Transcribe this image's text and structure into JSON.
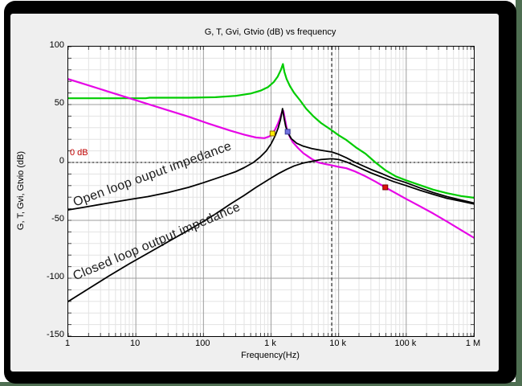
{
  "window": {
    "frame_color": "#000000",
    "desktop_color": "#4e6e51",
    "panel_color": "#efefef",
    "plot_bg": "#ffffff"
  },
  "chart_data": {
    "type": "line",
    "title": "G, T, Gvi, Gtvio (dB) vs frequency",
    "xlabel": "Frequency(Hz)",
    "ylabel": "G, T, Gvi, Gtvio (dB)",
    "x_scale": "log",
    "xlim": [
      1,
      1000000
    ],
    "ylim": [
      -150,
      100
    ],
    "grid": true,
    "grid_minor_color": "#e3e3e3",
    "grid_major_color": "#9c9c9c",
    "tick_color": "#444444",
    "y_ticks": [
      100,
      50,
      0,
      -50,
      -100,
      -150
    ],
    "y_tick_labels": [
      "100",
      "50",
      "0",
      "-50",
      "-100",
      "-150"
    ],
    "y_minor_step_db": 10,
    "x_tick_labels": [
      "1",
      "10",
      "100",
      "1 k",
      "10 k",
      "100 k",
      "1 M"
    ],
    "series": [
      {
        "name": "green-curve",
        "color": "#00cc00",
        "width": 2.2,
        "points": [
          [
            1,
            55.4
          ],
          [
            5,
            55.4
          ],
          [
            14,
            55.4
          ],
          [
            16,
            55.9
          ],
          [
            60,
            55.9
          ],
          [
            150,
            56.3
          ],
          [
            300,
            57.5
          ],
          [
            500,
            59.5
          ],
          [
            700,
            62
          ],
          [
            900,
            65
          ],
          [
            1100,
            69.5
          ],
          [
            1250,
            74
          ],
          [
            1400,
            80
          ],
          [
            1500,
            85
          ],
          [
            1580,
            78
          ],
          [
            1700,
            72
          ],
          [
            1900,
            66
          ],
          [
            2200,
            60
          ],
          [
            2700,
            53.5
          ],
          [
            3300,
            46.5
          ],
          [
            4200,
            40
          ],
          [
            5500,
            34
          ],
          [
            7900,
            27.8
          ],
          [
            10000,
            23.5
          ],
          [
            13000,
            19.4
          ],
          [
            18000,
            13
          ],
          [
            25000,
            7.5
          ],
          [
            35000,
            0
          ],
          [
            50000,
            -7
          ],
          [
            70000,
            -12
          ],
          [
            100000,
            -15.5
          ],
          [
            150000,
            -19
          ],
          [
            250000,
            -23.5
          ],
          [
            400000,
            -26.5
          ],
          [
            650000,
            -29
          ],
          [
            1000000,
            -30.5
          ]
        ]
      },
      {
        "name": "magenta-curve",
        "color": "#e606e6",
        "width": 2.2,
        "points": [
          [
            1,
            72
          ],
          [
            2,
            66.5
          ],
          [
            4,
            61
          ],
          [
            8,
            55.5
          ],
          [
            15,
            50.5
          ],
          [
            30,
            45
          ],
          [
            60,
            39.5
          ],
          [
            120,
            33.5
          ],
          [
            250,
            27.5
          ],
          [
            400,
            24
          ],
          [
            600,
            21.5
          ],
          [
            800,
            21
          ],
          [
            950,
            22.5
          ],
          [
            1050,
            25
          ],
          [
            1150,
            28.5
          ],
          [
            1250,
            33
          ],
          [
            1350,
            38
          ],
          [
            1450,
            43.5
          ],
          [
            1520,
            44.5
          ],
          [
            1600,
            38
          ],
          [
            1700,
            30
          ],
          [
            1760,
            26.5
          ],
          [
            1900,
            22
          ],
          [
            2100,
            17.5
          ],
          [
            2500,
            12.5
          ],
          [
            3000,
            8
          ],
          [
            4000,
            3
          ],
          [
            5000,
            0
          ],
          [
            6500,
            -1.5
          ],
          [
            7900,
            -2.5
          ],
          [
            10000,
            -3.8
          ],
          [
            13000,
            -5
          ],
          [
            17000,
            -7.5
          ],
          [
            25000,
            -12
          ],
          [
            35000,
            -16.5
          ],
          [
            49000,
            -21.5
          ],
          [
            70000,
            -26.5
          ],
          [
            100000,
            -31.5
          ],
          [
            150000,
            -37
          ],
          [
            250000,
            -44
          ],
          [
            400000,
            -51
          ],
          [
            650000,
            -58.5
          ],
          [
            1000000,
            -65
          ]
        ]
      },
      {
        "name": "open-loop-output-impedance-curve",
        "color": "#000000",
        "width": 1.8,
        "points": [
          [
            1,
            -41
          ],
          [
            2,
            -38
          ],
          [
            4,
            -35
          ],
          [
            8,
            -32
          ],
          [
            15,
            -29.5
          ],
          [
            30,
            -26
          ],
          [
            60,
            -21.5
          ],
          [
            100,
            -17.5
          ],
          [
            150,
            -14
          ],
          [
            214,
            -11
          ],
          [
            300,
            -8
          ],
          [
            400,
            -4.5
          ],
          [
            550,
            0
          ],
          [
            700,
            5
          ],
          [
            850,
            10
          ],
          [
            1000,
            16
          ],
          [
            1150,
            23
          ],
          [
            1280,
            30
          ],
          [
            1380,
            37
          ],
          [
            1480,
            46.5
          ],
          [
            1560,
            38
          ],
          [
            1650,
            31
          ],
          [
            1800,
            25
          ],
          [
            2000,
            20.5
          ],
          [
            2400,
            16.5
          ],
          [
            3000,
            14
          ],
          [
            4000,
            12
          ],
          [
            5500,
            10.5
          ],
          [
            7900,
            9
          ],
          [
            10000,
            7
          ],
          [
            13000,
            4
          ],
          [
            17000,
            0.5
          ],
          [
            22000,
            -2.5
          ],
          [
            30000,
            -6
          ],
          [
            45000,
            -10
          ],
          [
            65000,
            -14
          ],
          [
            100000,
            -17.5
          ],
          [
            160000,
            -22
          ],
          [
            250000,
            -26
          ],
          [
            400000,
            -29.5
          ],
          [
            650000,
            -32.5
          ],
          [
            1000000,
            -35
          ]
        ]
      },
      {
        "name": "closed-loop-output-impedance-curve",
        "color": "#000000",
        "width": 1.8,
        "points": [
          [
            1,
            -120
          ],
          [
            2,
            -109
          ],
          [
            4,
            -98
          ],
          [
            8,
            -87.5
          ],
          [
            15,
            -78.5
          ],
          [
            30,
            -68.5
          ],
          [
            60,
            -58.5
          ],
          [
            100,
            -51
          ],
          [
            150,
            -44.5
          ],
          [
            250,
            -36
          ],
          [
            400,
            -28.5
          ],
          [
            600,
            -21.5
          ],
          [
            800,
            -17
          ],
          [
            1000,
            -13.5
          ],
          [
            1300,
            -9.5
          ],
          [
            1700,
            -6
          ],
          [
            2200,
            -3
          ],
          [
            3000,
            -0.5
          ],
          [
            4000,
            1
          ],
          [
            5500,
            2.5
          ],
          [
            7900,
            3.2
          ],
          [
            10000,
            2.5
          ],
          [
            13000,
            0.5
          ],
          [
            17000,
            -2.5
          ],
          [
            22000,
            -5.5
          ],
          [
            30000,
            -9
          ],
          [
            45000,
            -13
          ],
          [
            65000,
            -16.5
          ],
          [
            100000,
            -20
          ],
          [
            160000,
            -24
          ],
          [
            250000,
            -27.5
          ],
          [
            400000,
            -31
          ],
          [
            650000,
            -33.5
          ],
          [
            1000000,
            -35.8
          ]
        ]
      }
    ],
    "annotations": {
      "zero_db_label": {
        "text": "0 dB",
        "color": "#c00000"
      },
      "curve_labels": [
        {
          "id": "open-loop-label",
          "text": "Open loop ouput impedance"
        },
        {
          "id": "closed-loop-label",
          "text": "Closed loop output impedance"
        }
      ],
      "cursors": {
        "vertical_hz": 7900,
        "horizontal_db": 0,
        "color": "#000000"
      },
      "markers": [
        {
          "name": "yellow-marker",
          "f": 1050,
          "db": 25,
          "fill": "#ffee00",
          "edge": "#806000"
        },
        {
          "name": "blue-marker",
          "f": 1760,
          "db": 26.5,
          "fill": "#7272e0",
          "edge": "#3a3a9a"
        },
        {
          "name": "red-marker",
          "f": 49000,
          "db": -21.5,
          "fill": "#e01010",
          "edge": "#700000"
        }
      ]
    }
  }
}
